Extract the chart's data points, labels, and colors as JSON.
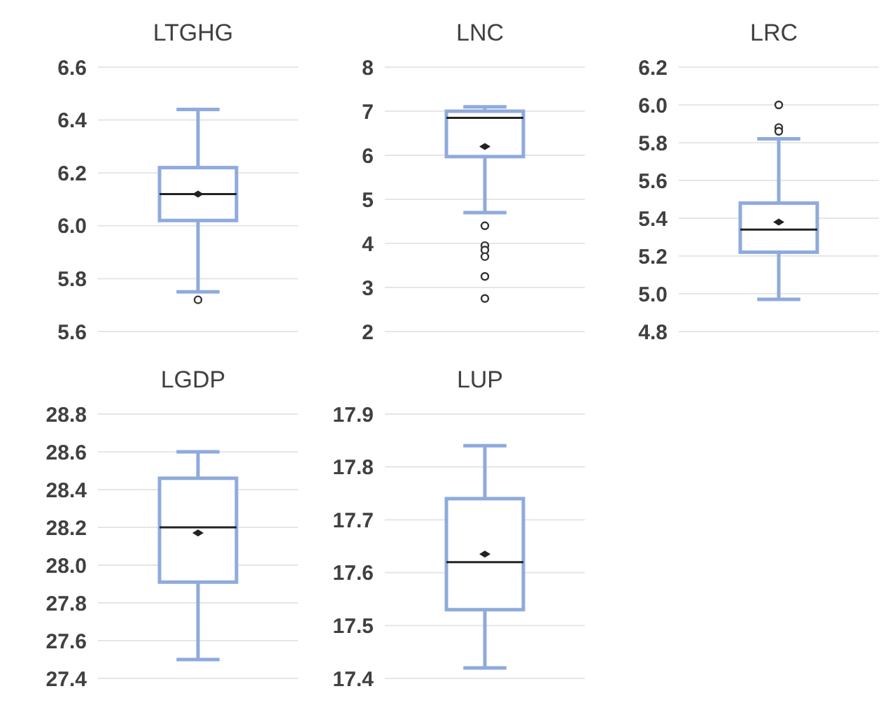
{
  "chart_data": [
    {
      "type": "box",
      "title": "LTGHG",
      "categories": [
        null
      ],
      "series": [
        {
          "color": "#8faadc",
          "boxes": [
            {
              "low": 5.75,
              "q1": 6.02,
              "median": 6.12,
              "q3": 6.22,
              "high": 6.44,
              "mean": 6.12,
              "outliers": [
                5.72
              ]
            }
          ]
        }
      ],
      "ylim": [
        5.6,
        6.6
      ],
      "yticks": [
        5.6,
        5.8,
        {
          "value": 6,
          "label": "6.0"
        },
        6.2,
        6.4,
        6.6
      ],
      "grid": "y",
      "tick_labels": "y"
    },
    {
      "type": "box",
      "title": "LNC",
      "categories": [
        null
      ],
      "series": [
        {
          "color": "#8faadc",
          "boxes": [
            {
              "low": 4.7,
              "q1": 5.97,
              "median": 6.85,
              "q3": 7.0,
              "high": 7.1,
              "mean": 6.2,
              "outliers": [
                4.4,
                3.95,
                3.85,
                3.7,
                3.25,
                2.75
              ]
            }
          ]
        }
      ],
      "ylim": [
        2,
        8
      ],
      "yticks": [
        2,
        3,
        4,
        5,
        6,
        7,
        8
      ],
      "grid": "y",
      "tick_labels": "y"
    },
    {
      "type": "box",
      "title": "LRC",
      "categories": [
        null
      ],
      "series": [
        {
          "color": "#8faadc",
          "boxes": [
            {
              "low": 4.97,
              "q1": 5.22,
              "median": 5.34,
              "q3": 5.48,
              "high": 5.82,
              "mean": 5.38,
              "outliers": [
                6.0,
                5.88,
                5.86
              ]
            }
          ]
        }
      ],
      "ylim": [
        4.8,
        6.2
      ],
      "yticks": [
        4.8,
        {
          "value": 5,
          "label": "5.0"
        },
        5.2,
        5.4,
        5.6,
        5.8,
        {
          "value": 6,
          "label": "6.0"
        },
        6.2
      ],
      "grid": "y",
      "tick_labels": "y"
    },
    {
      "type": "box",
      "title": "LGDP",
      "categories": [
        null
      ],
      "series": [
        {
          "color": "#8faadc",
          "boxes": [
            {
              "low": 27.5,
              "q1": 27.91,
              "median": 28.2,
              "q3": 28.46,
              "high": 28.6,
              "mean": 28.17
            }
          ]
        }
      ],
      "ylim": [
        27.4,
        28.8
      ],
      "yticks": [
        27.4,
        27.6,
        27.8,
        {
          "value": 28,
          "label": "28.0"
        },
        28.2,
        28.4,
        28.6,
        28.8
      ],
      "grid": "y",
      "tick_labels": "y"
    },
    {
      "type": "box",
      "title": "LUP",
      "categories": [
        null
      ],
      "series": [
        {
          "color": "#8faadc",
          "boxes": [
            {
              "low": 17.42,
              "q1": 17.53,
              "median": 17.62,
              "q3": 17.74,
              "high": 17.84,
              "mean": 17.635
            }
          ]
        }
      ],
      "ylim": [
        17.4,
        17.9
      ],
      "yticks": [
        17.4,
        17.5,
        17.6,
        17.7,
        17.8,
        17.9
      ],
      "grid": "y",
      "tick_labels": "y"
    }
  ]
}
